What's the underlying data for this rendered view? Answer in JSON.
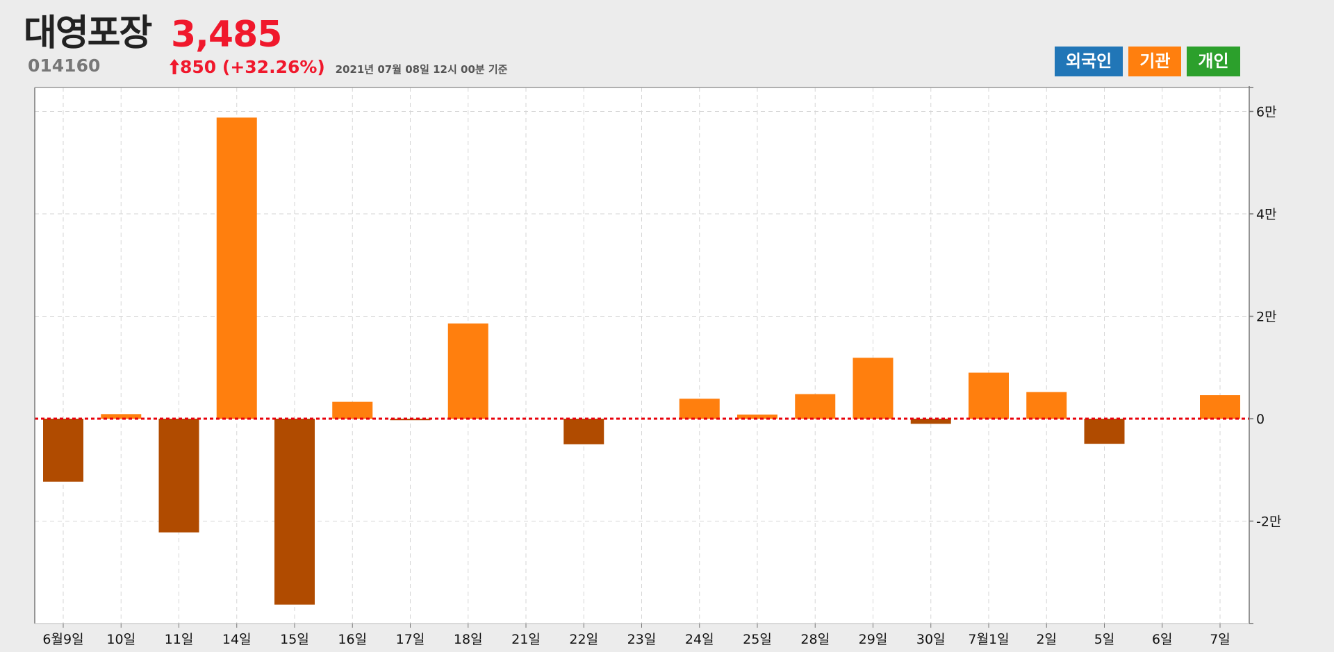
{
  "header": {
    "name": "대영포장",
    "code": "014160",
    "price": "3,485",
    "change": "850",
    "change_pct": "(+32.26%)",
    "timestamp": "2021년 07월 08일 12시 00분 기준"
  },
  "legend": [
    {
      "label": "외국인",
      "color": "#2176b7"
    },
    {
      "label": "기관",
      "color": "#ff7f0e"
    },
    {
      "label": "개인",
      "color": "#2ca02c"
    }
  ],
  "colors": {
    "positive": "#ff7f0e",
    "negative": "#b04b00",
    "zero_line": "#e8000b",
    "price_up": "#f0182c"
  },
  "chart_data": {
    "type": "bar",
    "series": [
      {
        "name": "기관",
        "values": [
          -12300,
          900,
          -22200,
          58800,
          -36300,
          3300,
          -300,
          18600,
          0,
          -5000,
          0,
          3900,
          800,
          4800,
          11900,
          -1000,
          9000,
          5200,
          -4900,
          0,
          4600
        ]
      }
    ],
    "categories": [
      "6월9일",
      "10일",
      "11일",
      "14일",
      "15일",
      "16일",
      "17일",
      "18일",
      "21일",
      "22일",
      "23일",
      "24일",
      "25일",
      "28일",
      "29일",
      "30일",
      "7월1일",
      "2일",
      "5일",
      "6일",
      "7일"
    ],
    "y_ticks": [
      -20000,
      0,
      20000,
      40000,
      60000
    ],
    "y_tick_labels": [
      "-2만",
      "0",
      "2만",
      "4만",
      "6만"
    ],
    "ylim": [
      -40000,
      60000
    ],
    "grid": true,
    "y_axis_position": "right"
  }
}
